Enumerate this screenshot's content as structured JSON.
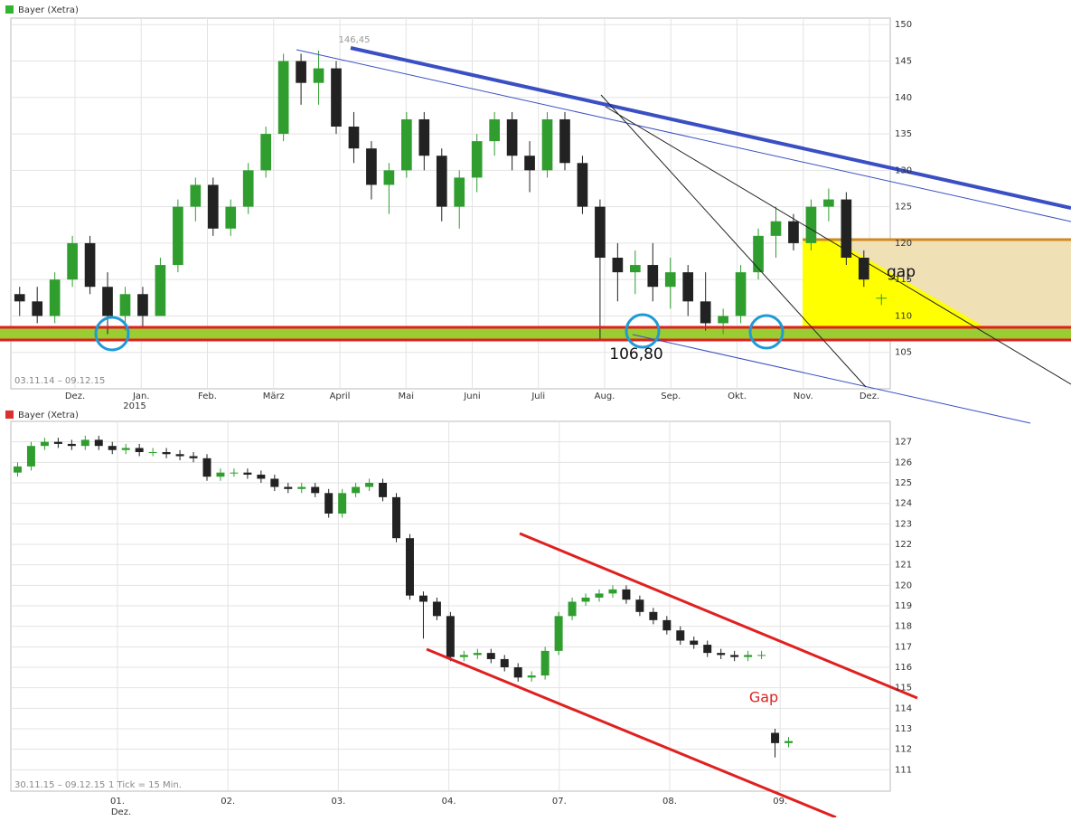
{
  "chart_data": [
    {
      "type": "candlestick",
      "title": "Bayer (Xetra)",
      "legend_color": "#2fb52f",
      "range_label": "03.11.14 – 09.12.15",
      "month_labels": [
        "Dez.",
        "Jan.",
        "Feb.",
        "März",
        "April",
        "Mai",
        "Juni",
        "Juli",
        "Aug.",
        "Sep.",
        "Okt.",
        "Nov.",
        "Dez."
      ],
      "year_label": "2015",
      "up_color": "#2f9e2f",
      "down_color": "#222222",
      "ylim": [
        100,
        150.9
      ],
      "yticks": [
        105,
        110,
        115,
        120,
        125,
        130,
        135,
        140,
        145,
        150
      ],
      "grid": true,
      "open": [
        113,
        112,
        110,
        115,
        120,
        114,
        110,
        113,
        110,
        117,
        125,
        128,
        122,
        125,
        130,
        135,
        145,
        142,
        144,
        136,
        133,
        128,
        130,
        137,
        132,
        125,
        129,
        134,
        137,
        132,
        130,
        137,
        131,
        125,
        118,
        116,
        117,
        114,
        116,
        112,
        109,
        110,
        116,
        121,
        123,
        120,
        125,
        126,
        118,
        112.5
      ],
      "high": [
        114,
        114,
        116,
        121,
        121,
        116,
        114,
        114,
        118,
        126,
        129,
        129,
        126,
        131,
        136,
        146,
        146,
        146.45,
        145,
        138,
        134,
        131,
        138,
        138,
        133,
        130,
        135,
        138,
        138,
        134,
        138,
        138,
        132,
        126,
        120,
        119,
        120,
        118,
        117,
        116,
        111,
        117,
        122,
        125,
        124,
        126,
        127.5,
        127,
        119,
        113
      ],
      "low": [
        110,
        109,
        109,
        114,
        113,
        107.5,
        108,
        108.5,
        110,
        116,
        123,
        121,
        121,
        124,
        129,
        134,
        139,
        139,
        135,
        131,
        126,
        124,
        129,
        130,
        123,
        122,
        127,
        132,
        130,
        127,
        129,
        130,
        124,
        106.8,
        112,
        113,
        112,
        111,
        110,
        108,
        107.5,
        109,
        115,
        118,
        119,
        119,
        123,
        117,
        114,
        111.5
      ],
      "close": [
        112,
        110,
        115,
        120,
        114,
        110,
        113,
        110,
        117,
        125,
        128,
        122,
        125,
        130,
        135,
        145,
        142,
        144,
        136,
        133,
        128,
        130,
        137,
        132,
        125,
        129,
        134,
        137,
        132,
        130,
        137,
        131,
        125,
        118,
        116,
        117,
        114,
        116,
        112,
        109,
        110,
        116,
        121,
        123,
        120,
        125,
        126,
        118,
        115,
        112.5
      ],
      "annotations": [
        "146,45",
        "106,80",
        "gap"
      ]
    },
    {
      "type": "candlestick",
      "title": "Bayer (Xetra)",
      "legend_color": "#d93030",
      "range_label": "30.11.15 – 09.12.15",
      "tick_info": "1 Tick = 15 Min.",
      "day_labels": [
        "01.",
        "02.",
        "03.",
        "04.",
        "07.",
        "08.",
        "09."
      ],
      "month_label": "Dez.",
      "up_color": "#2f9e2f",
      "down_color": "#222222",
      "ylim": [
        110,
        128
      ],
      "yticks": [
        111,
        112,
        113,
        114,
        115,
        116,
        117,
        118,
        119,
        120,
        121,
        122,
        123,
        124,
        125,
        126,
        127
      ],
      "grid": true,
      "open": [
        125.5,
        125.8,
        126.8,
        127,
        126.9,
        126.8,
        127.1,
        126.8,
        126.6,
        126.7,
        126.5,
        126.5,
        126.4,
        126.3,
        126.2,
        125.3,
        125.5,
        125.5,
        125.4,
        125.2,
        124.8,
        124.7,
        124.8,
        124.5,
        123.5,
        124.5,
        124.8,
        125,
        124.3,
        122.3,
        119.5,
        119.2,
        118.5,
        116.5,
        116.6,
        116.7,
        116.4,
        116,
        115.5,
        115.6,
        116.8,
        118.5,
        119.2,
        119.4,
        119.6,
        119.8,
        119.3,
        118.7,
        118.3,
        117.8,
        117.3,
        117.1,
        116.7,
        116.6,
        116.5,
        116.6,
        112.8,
        112.3
      ],
      "high": [
        126.0,
        127.0,
        127.2,
        127.2,
        127.1,
        127.3,
        127.3,
        127.0,
        126.9,
        126.9,
        126.7,
        126.7,
        126.6,
        126.5,
        126.4,
        125.7,
        125.7,
        125.7,
        125.6,
        125.4,
        125.0,
        125.0,
        125.0,
        124.7,
        124.7,
        125.0,
        125.2,
        125.2,
        124.5,
        122.5,
        119.7,
        119.4,
        118.7,
        116.8,
        116.9,
        116.9,
        116.6,
        116.2,
        115.8,
        117.0,
        118.7,
        119.4,
        119.6,
        119.8,
        120.0,
        120.0,
        119.5,
        118.9,
        118.5,
        118.0,
        117.5,
        117.3,
        116.9,
        116.8,
        116.8,
        116.8,
        113.0,
        112.6
      ],
      "low": [
        125.3,
        125.6,
        126.6,
        126.7,
        126.6,
        126.6,
        126.6,
        126.4,
        126.4,
        126.3,
        126.3,
        126.2,
        126.1,
        126.0,
        125.1,
        125.1,
        125.3,
        125.2,
        125.0,
        124.6,
        124.5,
        124.5,
        124.3,
        123.3,
        123.3,
        124.3,
        124.6,
        124.1,
        122.1,
        119.3,
        117.4,
        118.3,
        116.3,
        116.3,
        116.4,
        116.2,
        115.8,
        115.3,
        115.3,
        115.4,
        116.6,
        118.3,
        119.0,
        119.2,
        119.4,
        119.1,
        118.5,
        118.1,
        117.6,
        117.1,
        116.9,
        116.5,
        116.4,
        116.3,
        116.3,
        116.4,
        111.6,
        112.1
      ],
      "close": [
        125.8,
        126.8,
        127,
        126.9,
        126.8,
        127.1,
        126.8,
        126.6,
        126.7,
        126.5,
        126.5,
        126.4,
        126.3,
        126.2,
        125.3,
        125.5,
        125.5,
        125.4,
        125.2,
        124.8,
        124.7,
        124.8,
        124.5,
        123.5,
        124.5,
        124.8,
        125,
        124.3,
        122.3,
        119.5,
        119.2,
        118.5,
        116.5,
        116.6,
        116.7,
        116.4,
        116,
        115.5,
        115.6,
        116.8,
        118.5,
        119.2,
        119.4,
        119.6,
        119.8,
        119.3,
        118.7,
        118.3,
        117.8,
        117.3,
        117.1,
        116.7,
        116.6,
        116.5,
        116.6,
        116.6,
        112.3,
        112.4
      ],
      "annotations": [
        "Gap"
      ]
    }
  ]
}
